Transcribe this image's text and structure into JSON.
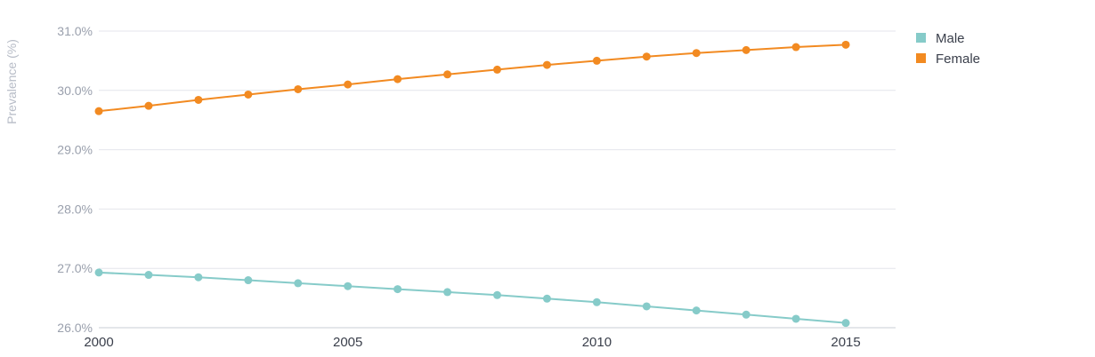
{
  "chart_data": {
    "type": "line",
    "title": "",
    "xlabel": "",
    "ylabel": "Prevalence (%)",
    "xlim": [
      2000,
      2016
    ],
    "ylim": [
      26.0,
      31.0
    ],
    "y_ticks": [
      "26.0%",
      "27.0%",
      "28.0%",
      "29.0%",
      "30.0%",
      "31.0%"
    ],
    "x_ticks": [
      "2000",
      "2005",
      "2010",
      "2015"
    ],
    "grid": true,
    "legend_position": "top-right",
    "x": [
      2000,
      2001,
      2002,
      2003,
      2004,
      2005,
      2006,
      2007,
      2008,
      2009,
      2010,
      2011,
      2012,
      2013,
      2014,
      2015
    ],
    "series": [
      {
        "name": "Male",
        "color": "#86cbc9",
        "values": [
          26.93,
          26.89,
          26.85,
          26.8,
          26.75,
          26.7,
          26.65,
          26.6,
          26.55,
          26.49,
          26.43,
          26.36,
          26.29,
          26.22,
          26.15,
          26.08
        ]
      },
      {
        "name": "Female",
        "color": "#f28a21",
        "values": [
          29.65,
          29.74,
          29.84,
          29.93,
          30.02,
          30.1,
          30.19,
          30.27,
          30.35,
          30.43,
          30.5,
          30.57,
          30.63,
          30.68,
          30.73,
          30.77
        ]
      }
    ]
  }
}
